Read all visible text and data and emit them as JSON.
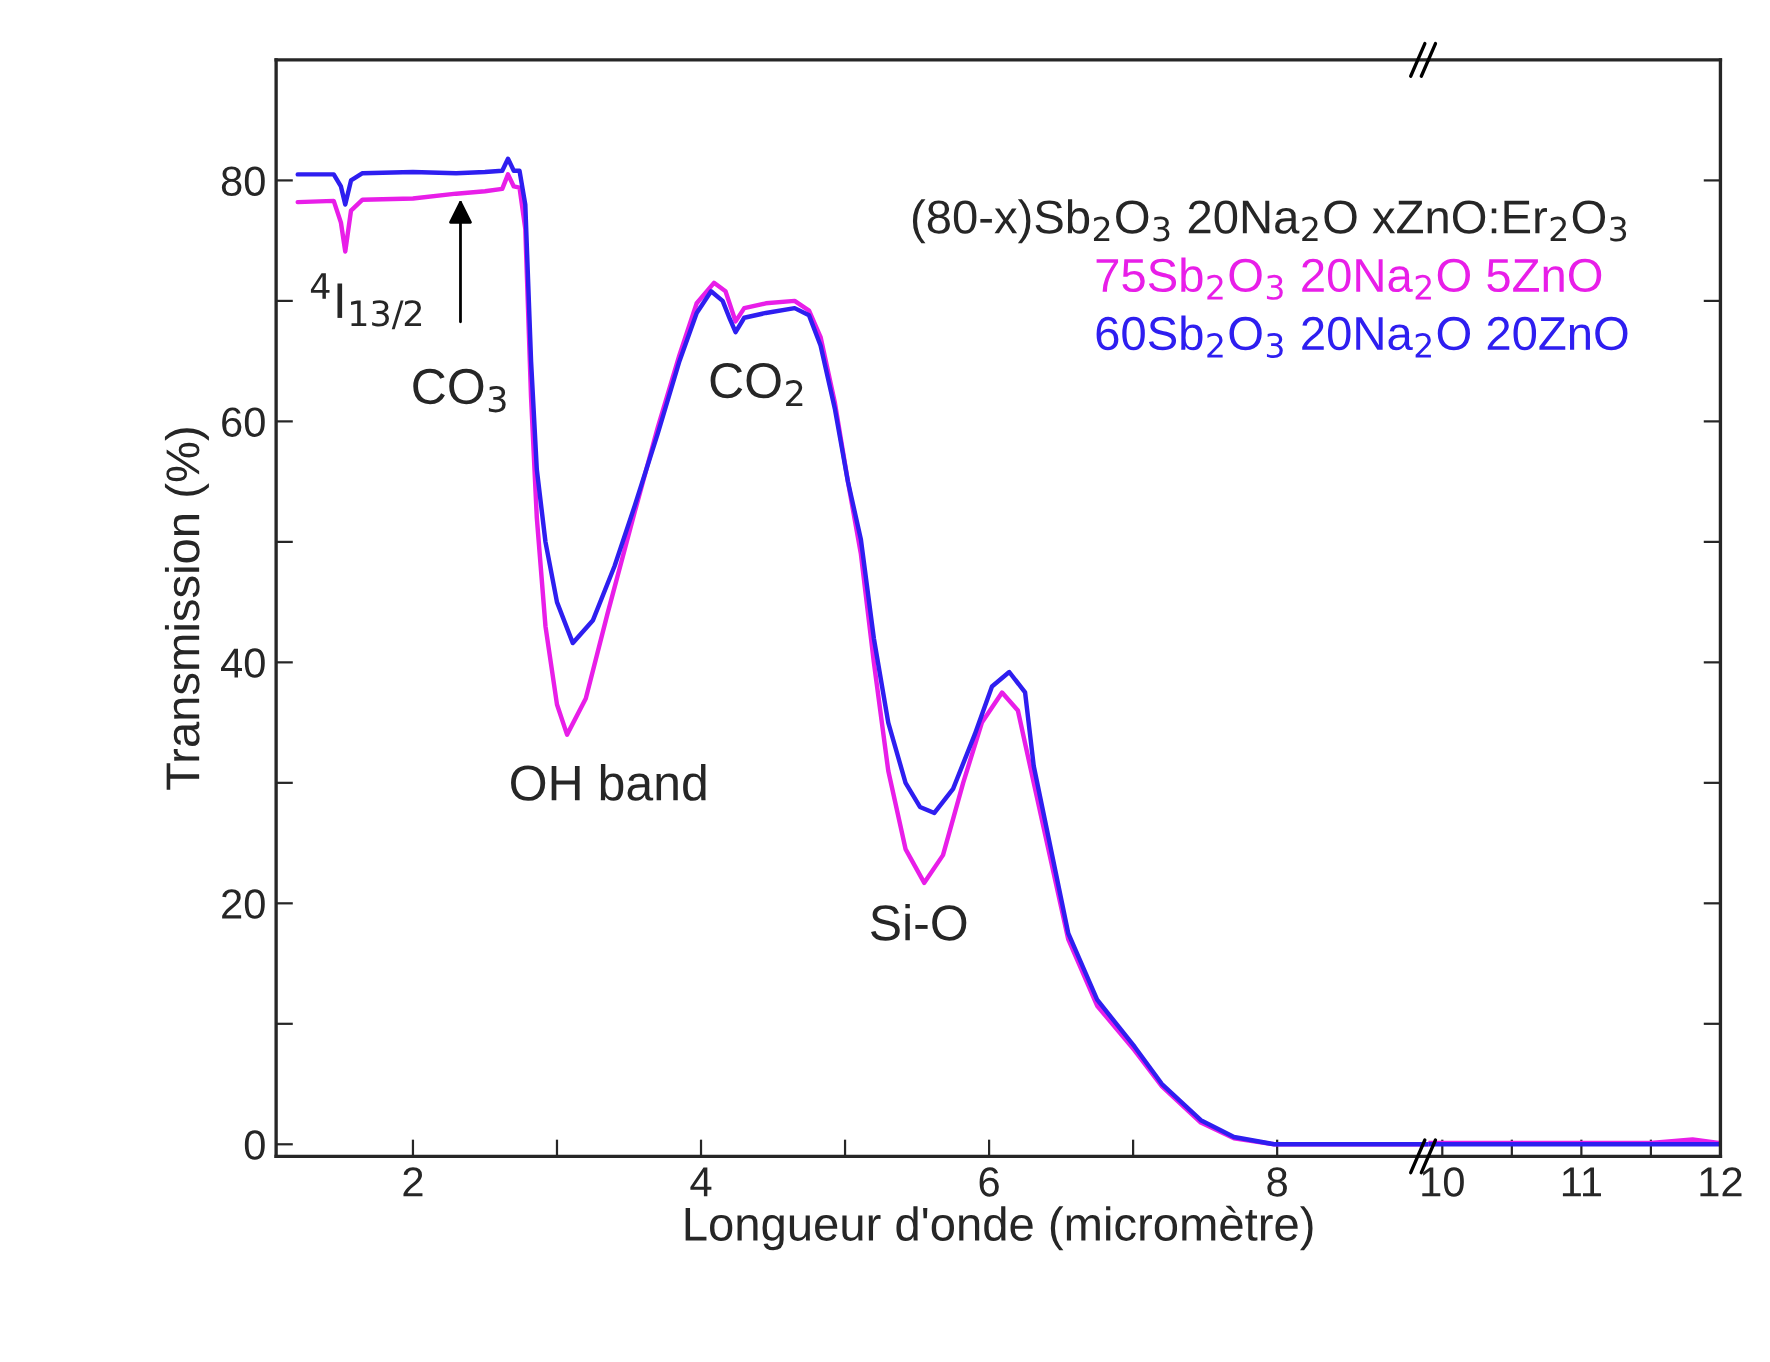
{
  "chart_data": [
    {
      "type": "line",
      "xlabel": "Longueur d'onde (micromètre)",
      "ylabel": "Transmission (%)",
      "legend_title": "(80-x)Sb$_{2}$O$_{3}$ 20Na$_{2}$O xZnO:Er$_{2}$O$_{3}$",
      "annotations": [
        {
          "text": "$^{4}$I$_{13/2}$",
          "x": 1.53,
          "y": 74.1
        },
        {
          "text": "CO$_{3}$",
          "x": 2.33,
          "y": 78.9
        },
        {
          "text": "OH band",
          "x": 3.07,
          "y": 34.0
        },
        {
          "text": "CO$_{2}$",
          "x": 4.24,
          "y": 67.4
        },
        {
          "text": "Si-O",
          "x": 5.55,
          "y": 21.7
        }
      ],
      "xlim": [
        1.05,
        9.05
      ],
      "ylim": [
        -1,
        90
      ],
      "xticks": [
        2,
        {
          "value": 3,
          "label": null
        },
        4,
        {
          "value": 5,
          "label": null
        },
        6,
        {
          "value": 7,
          "label": null
        },
        8
      ],
      "yticks": [
        0,
        {
          "value": 10,
          "label": null
        },
        20,
        {
          "value": 30,
          "label": null
        },
        40,
        {
          "value": 50,
          "label": null
        },
        60,
        {
          "value": 70,
          "label": null
        },
        80
      ],
      "series": [
        {
          "name": "75Sb$_{2}$O$_{3}$ 20Na$_{2}$O 5ZnO",
          "color": "#e81ee8",
          "x": [
            1.2,
            1.45,
            1.5,
            1.53,
            1.57,
            1.65,
            2.0,
            2.3,
            2.5,
            2.62,
            2.66,
            2.7,
            2.74,
            2.78,
            2.82,
            2.86,
            2.92,
            3.0,
            3.07,
            3.2,
            3.35,
            3.54,
            3.7,
            3.85,
            3.97,
            4.09,
            4.17,
            4.24,
            4.3,
            4.45,
            4.65,
            4.75,
            4.83,
            4.93,
            5.02,
            5.11,
            5.2,
            5.3,
            5.42,
            5.55,
            5.68,
            5.82,
            5.95,
            6.09,
            6.2,
            6.31,
            6.55,
            6.75,
            7.01,
            7.2,
            7.47,
            7.7,
            7.98,
            8.5,
            9.05
          ],
          "values": [
            78.2,
            78.3,
            76.5,
            74.1,
            77.5,
            78.4,
            78.5,
            78.9,
            79.1,
            79.3,
            80.5,
            79.5,
            79.4,
            76,
            62,
            52,
            43,
            36.5,
            34.0,
            37,
            44,
            52.5,
            59.5,
            65.5,
            69.8,
            71.5,
            70.8,
            68.3,
            69.4,
            69.8,
            70.0,
            69.2,
            67,
            61.5,
            55,
            49,
            40,
            31,
            24.5,
            21.7,
            24,
            30,
            35,
            37.5,
            36,
            30,
            17,
            11.5,
            7.8,
            4.8,
            1.8,
            0.5,
            0,
            0,
            0
          ]
        },
        {
          "name": "60Sb$_{2}$O$_{3}$ 20Na$_{2}$O 20ZnO",
          "color": "#2e1ef0",
          "x": [
            1.2,
            1.45,
            1.5,
            1.53,
            1.57,
            1.65,
            2.0,
            2.3,
            2.5,
            2.62,
            2.66,
            2.7,
            2.74,
            2.78,
            2.82,
            2.86,
            2.92,
            3.0,
            3.11,
            3.25,
            3.4,
            3.54,
            3.7,
            3.85,
            3.97,
            4.07,
            4.15,
            4.2,
            4.24,
            4.3,
            4.45,
            4.65,
            4.75,
            4.83,
            4.93,
            5.02,
            5.11,
            5.2,
            5.3,
            5.42,
            5.52,
            5.62,
            5.75,
            5.9,
            6.02,
            6.14,
            6.25,
            6.31,
            6.55,
            6.75,
            7.01,
            7.2,
            7.47,
            7.7,
            7.98,
            8.5,
            9.05
          ],
          "values": [
            80.5,
            80.5,
            79.5,
            78.0,
            80.0,
            80.6,
            80.7,
            80.6,
            80.7,
            80.8,
            81.8,
            80.8,
            80.8,
            78,
            65,
            56,
            50,
            45,
            41.6,
            43.5,
            48,
            53,
            59,
            65,
            69,
            70.8,
            70.0,
            68.5,
            67.4,
            68.6,
            69.0,
            69.4,
            68.8,
            66.3,
            61,
            55,
            50.2,
            42,
            35,
            30,
            28,
            27.5,
            29.5,
            34,
            38,
            39.2,
            37.5,
            31.4,
            17.5,
            12,
            8.1,
            5,
            2.0,
            0.6,
            0,
            0,
            0
          ]
        }
      ]
    },
    {
      "type": "line",
      "tick_labels": "x",
      "xlim": [
        9.9,
        12
      ],
      "ylim": [
        -1,
        90
      ],
      "xticks": [
        10,
        {
          "value": 10.5,
          "label": null
        },
        11,
        {
          "value": 11.5,
          "label": null
        },
        12
      ],
      "yticks": [
        0,
        {
          "value": 10,
          "label": null
        },
        20,
        {
          "value": 30,
          "label": null
        },
        40,
        {
          "value": 50,
          "label": null
        },
        60,
        {
          "value": 70,
          "label": null
        },
        80
      ],
      "series": [
        {
          "color": "#e81ee8",
          "x": [
            9.9,
            10.5,
            11,
            11.5,
            11.8,
            12
          ],
          "values": [
            0.1,
            0.1,
            0.1,
            0.1,
            0.4,
            0.1
          ]
        },
        {
          "color": "#2e1ef0",
          "x": [
            9.9,
            10.5,
            11,
            11.5,
            11.8,
            12
          ],
          "values": [
            0,
            0,
            0,
            0,
            0,
            0
          ]
        }
      ]
    }
  ]
}
